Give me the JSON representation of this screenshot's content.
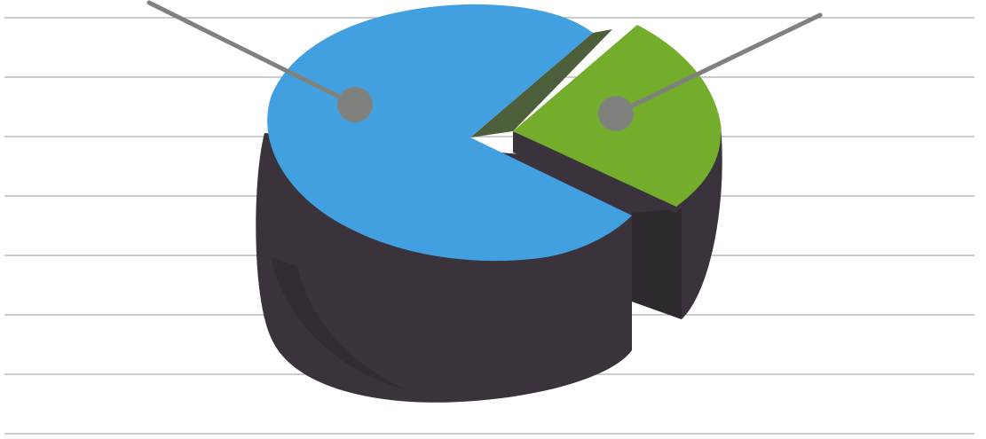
{
  "colors": {
    "background": "#ffffff",
    "rule_line": "#9a9a9a",
    "base_side": "#3a333b",
    "base_side_shadow": "#2e282f",
    "blue_slice": "#429fe0",
    "green_slice": "#73ad2b",
    "green_inner_face": "#4c5e3a",
    "leader_line": "#7f827c",
    "leader_dot": "#7f827c"
  },
  "icons": {
    "leader_dot": "filled-circle"
  },
  "chart_data": {
    "type": "pie",
    "style": "3d-exploded",
    "title": "",
    "labels_visible": false,
    "slices": [
      {
        "color": "#429fe0",
        "value": 75,
        "exploded": false
      },
      {
        "color": "#73ad2b",
        "value": 25,
        "exploded": true
      }
    ],
    "leader_lines": [
      {
        "slice": 0,
        "direction": "upper-left"
      },
      {
        "slice": 1,
        "direction": "upper-right"
      }
    ],
    "background_rules": 8
  }
}
